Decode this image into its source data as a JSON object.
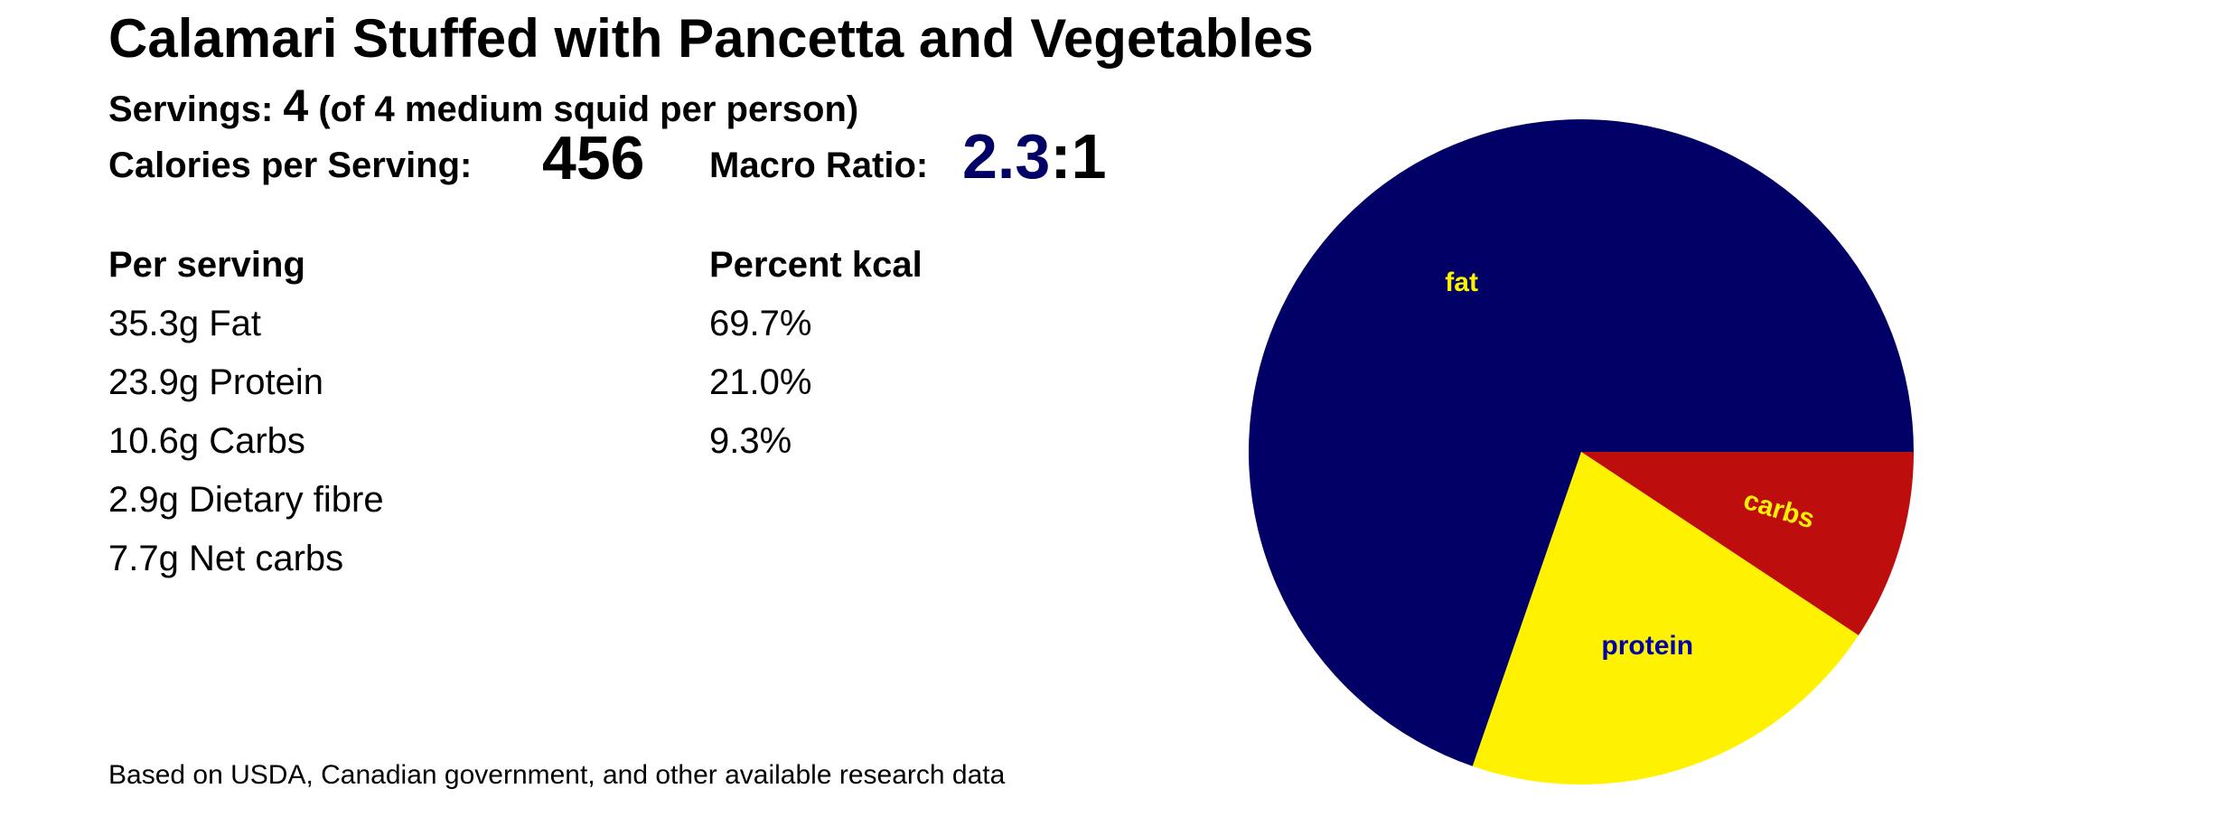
{
  "title": "Calamari Stuffed with Pancetta and Vegetables",
  "servings": {
    "label": "Servings:",
    "value": "4",
    "note": "(of 4 medium squid per person)"
  },
  "calories": {
    "label": "Calories per Serving:",
    "value": "456"
  },
  "macro_ratio": {
    "label": "Macro Ratio:",
    "value": "2.3",
    "suffix": ":1"
  },
  "nutrition": {
    "per_serving_header": "Per serving",
    "percent_header": "Percent kcal",
    "per_serving": [
      "35.3g Fat",
      "23.9g Protein",
      "10.6g Carbs",
      "2.9g Dietary fibre",
      "7.7g Net carbs"
    ],
    "percent": [
      "69.7%",
      "21.0%",
      "9.3%"
    ]
  },
  "footer": "Based on USDA, Canadian government, and other available research data",
  "chart_data": {
    "type": "pie",
    "categories": [
      "fat",
      "protein",
      "carbs"
    ],
    "values": [
      69.7,
      21.0,
      9.3
    ],
    "colors": [
      "#000066",
      "#FFF200",
      "#BE0D0D"
    ],
    "label_colors": [
      "#FFF200",
      "#0000AA",
      "#FFF200"
    ],
    "start": "3 o'clock",
    "direction": "clockwise (carbs, protein, fat)"
  }
}
